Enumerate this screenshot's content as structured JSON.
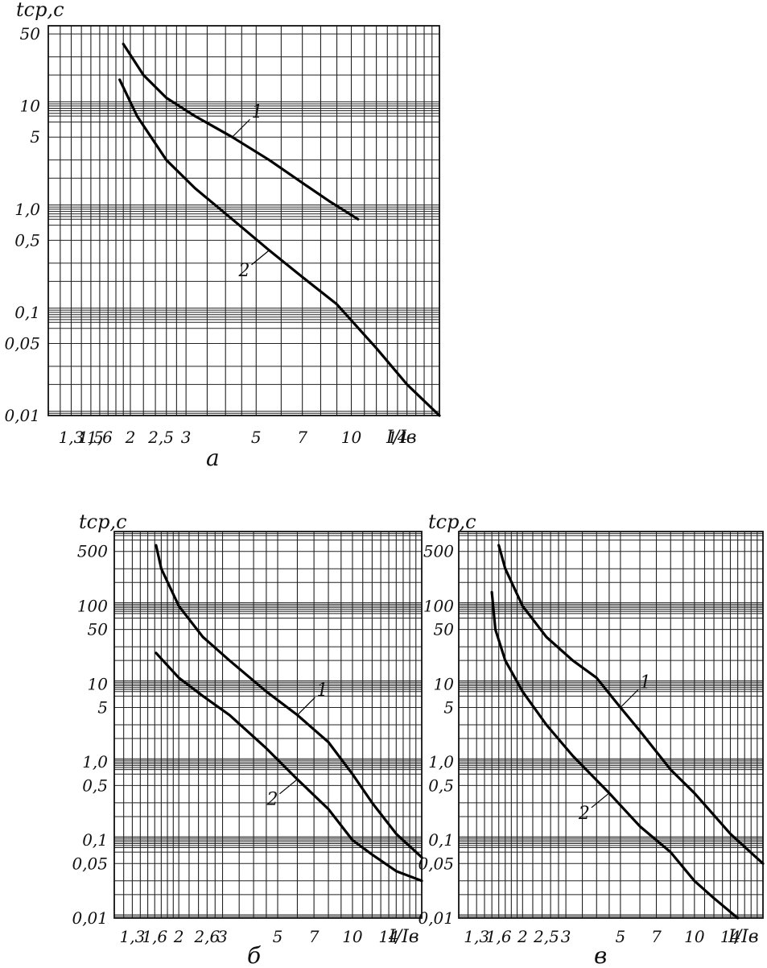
{
  "chart_data": [
    {
      "type": "line",
      "panel_label": "а",
      "ylabel": "tср,с",
      "xlabel": "I/Iв",
      "x_scale": "log",
      "y_scale": "log",
      "xlim": [
        1.1,
        19
      ],
      "ylim": [
        0.01,
        60
      ],
      "grid": true,
      "x_ticks": [
        {
          "v": 1.3,
          "t": "1,3"
        },
        {
          "v": 1.5,
          "t": "1,5"
        },
        {
          "v": 1.6,
          "t": "1,6"
        },
        {
          "v": 2,
          "t": "2"
        },
        {
          "v": 2.5,
          "t": "2,5"
        },
        {
          "v": 3,
          "t": "3"
        },
        {
          "v": 5,
          "t": "5"
        },
        {
          "v": 7,
          "t": "7"
        },
        {
          "v": 10,
          "t": "10"
        },
        {
          "v": 14,
          "t": "14"
        }
      ],
      "y_ticks": [
        {
          "v": 50,
          "t": "50"
        },
        {
          "v": 10,
          "t": "10"
        },
        {
          "v": 5,
          "t": "5"
        },
        {
          "v": 1,
          "t": "1,0"
        },
        {
          "v": 0.5,
          "t": "0,5"
        },
        {
          "v": 0.1,
          "t": "0,1"
        },
        {
          "v": 0.05,
          "t": "0,05"
        },
        {
          "v": 0.01,
          "t": "0,01"
        }
      ],
      "series": [
        {
          "name": "1",
          "x": [
            1.9,
            2.2,
            2.6,
            3.2,
            4.2,
            5.5,
            7,
            8.5,
            10.5
          ],
          "y": [
            40,
            20,
            12,
            8,
            5,
            3,
            1.8,
            1.2,
            0.8
          ]
        },
        {
          "name": "2",
          "x": [
            1.85,
            2.1,
            2.6,
            3.2,
            4.2,
            5.5,
            7,
            9,
            12,
            15,
            19
          ],
          "y": [
            18,
            8,
            3,
            1.6,
            0.8,
            0.4,
            0.22,
            0.12,
            0.045,
            0.02,
            0.01
          ]
        }
      ]
    },
    {
      "type": "line",
      "panel_label": "б",
      "ylabel": "tср,с",
      "xlabel": "I/Iв",
      "x_scale": "log",
      "y_scale": "log",
      "xlim": [
        1.1,
        19
      ],
      "ylim": [
        0.01,
        900
      ],
      "grid": true,
      "x_ticks": [
        {
          "v": 1.3,
          "t": "1,3"
        },
        {
          "v": 1.6,
          "t": "1,6"
        },
        {
          "v": 2,
          "t": "2"
        },
        {
          "v": 2.6,
          "t": "2,6"
        },
        {
          "v": 3,
          "t": "3"
        },
        {
          "v": 5,
          "t": "5"
        },
        {
          "v": 7,
          "t": "7"
        },
        {
          "v": 10,
          "t": "10"
        },
        {
          "v": 14,
          "t": "14"
        }
      ],
      "y_ticks": [
        {
          "v": 500,
          "t": "500"
        },
        {
          "v": 100,
          "t": "100"
        },
        {
          "v": 50,
          "t": "50"
        },
        {
          "v": 10,
          "t": "10"
        },
        {
          "v": 5,
          "t": "5"
        },
        {
          "v": 1,
          "t": "1,0"
        },
        {
          "v": 0.5,
          "t": "0,5"
        },
        {
          "v": 0.1,
          "t": "0,1"
        },
        {
          "v": 0.05,
          "t": "0,05"
        },
        {
          "v": 0.01,
          "t": "0,01"
        }
      ],
      "series": [
        {
          "name": "1",
          "x": [
            1.62,
            1.7,
            2,
            2.5,
            3.2,
            4.5,
            6,
            8,
            10,
            12,
            15,
            19
          ],
          "y": [
            600,
            300,
            100,
            40,
            20,
            8,
            4,
            1.8,
            0.7,
            0.3,
            0.12,
            0.06
          ]
        },
        {
          "name": "2",
          "x": [
            1.62,
            2,
            2.5,
            3.2,
            4.5,
            6,
            8,
            10,
            12,
            15,
            19
          ],
          "y": [
            25,
            12,
            7,
            4,
            1.5,
            0.6,
            0.25,
            0.1,
            0.065,
            0.04,
            0.03
          ]
        }
      ]
    },
    {
      "type": "line",
      "panel_label": "в",
      "ylabel": "tср,с",
      "xlabel": "I/Iв",
      "x_scale": "log",
      "y_scale": "log",
      "xlim": [
        1.1,
        19
      ],
      "ylim": [
        0.01,
        900
      ],
      "grid": true,
      "x_ticks": [
        {
          "v": 1.3,
          "t": "1,3"
        },
        {
          "v": 1.6,
          "t": "1,6"
        },
        {
          "v": 2,
          "t": "2"
        },
        {
          "v": 2.5,
          "t": "2,5"
        },
        {
          "v": 3,
          "t": "3"
        },
        {
          "v": 5,
          "t": "5"
        },
        {
          "v": 7,
          "t": "7"
        },
        {
          "v": 10,
          "t": "10"
        },
        {
          "v": 14,
          "t": "14"
        }
      ],
      "y_ticks": [
        {
          "v": 500,
          "t": "500"
        },
        {
          "v": 100,
          "t": "100"
        },
        {
          "v": 50,
          "t": "50"
        },
        {
          "v": 10,
          "t": "10"
        },
        {
          "v": 5,
          "t": "5"
        },
        {
          "v": 1,
          "t": "1,0"
        },
        {
          "v": 0.5,
          "t": "0,5"
        },
        {
          "v": 0.1,
          "t": "0,1"
        },
        {
          "v": 0.05,
          "t": "0,05"
        },
        {
          "v": 0.01,
          "t": "0,01"
        }
      ],
      "series": [
        {
          "name": "1",
          "x": [
            1.6,
            1.7,
            2,
            2.5,
            3.2,
            4,
            5,
            6,
            8,
            10,
            14,
            19
          ],
          "y": [
            600,
            300,
            100,
            40,
            20,
            12,
            5,
            2.5,
            0.8,
            0.4,
            0.12,
            0.05
          ]
        },
        {
          "name": "2",
          "x": [
            1.5,
            1.55,
            1.7,
            2,
            2.5,
            3.2,
            4.5,
            6,
            8,
            10,
            12,
            15
          ],
          "y": [
            150,
            50,
            20,
            8,
            3,
            1.2,
            0.4,
            0.15,
            0.07,
            0.03,
            0.018,
            0.01
          ]
        }
      ]
    }
  ]
}
